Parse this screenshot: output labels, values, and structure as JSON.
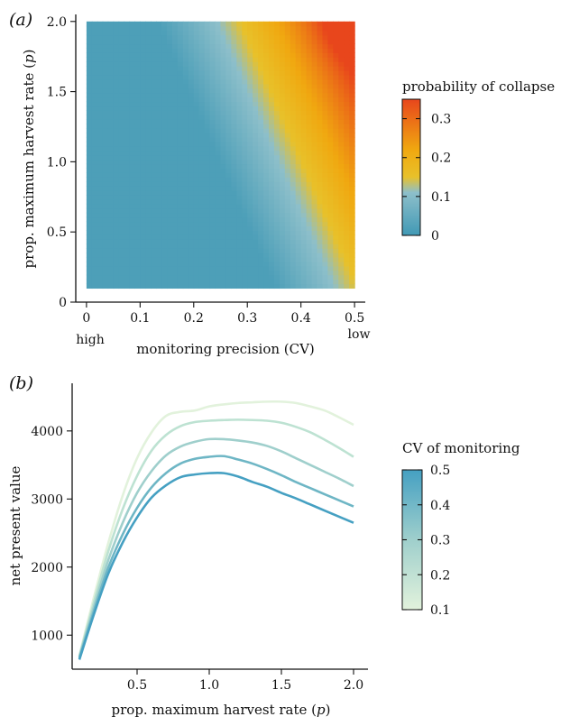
{
  "chart_data": [
    {
      "type": "heatmap",
      "panel_label": "(a)",
      "xlabel": "monitoring precision (CV)",
      "ylabel": "prop. maximum harvest rate (p)",
      "xlim": [
        -0.02,
        0.52
      ],
      "ylim": [
        0,
        2.05
      ],
      "x_range": [
        0,
        0.5
      ],
      "y_range": [
        0.1,
        2.0
      ],
      "x_ticks": [
        "0",
        "0.1",
        "0.2",
        "0.3",
        "0.4",
        "0.5"
      ],
      "y_ticks": [
        "0",
        "0.5",
        "1.0",
        "1.5",
        "2.0"
      ],
      "x_end_labels": {
        "low_precision": "low",
        "high_precision": "high"
      },
      "legend": {
        "title": "probability of collapse",
        "range": [
          0,
          0.35
        ],
        "ticks": [
          "0",
          "0.1",
          "0.2",
          "0.3"
        ],
        "colors": [
          "#4199b5",
          "#8dbfca",
          "#e8c12a",
          "#f0a810",
          "#e8461c"
        ],
        "color_stops": [
          0,
          0.11,
          0.15,
          0.22,
          0.35
        ]
      },
      "description_of_surface": "probability near 0 for most of the grid; rises in the upper-right corner (high CV, high p) to about 0.35 at CV=0.5, p=2.0"
    },
    {
      "type": "line",
      "panel_label": "(b)",
      "xlabel": "prop. maximum harvest rate (p)",
      "ylabel": "net present value",
      "xlim": [
        0.05,
        2.1
      ],
      "ylim": [
        500,
        4700
      ],
      "x_ticks": [
        "0.5",
        "1.0",
        "1.5",
        "2.0"
      ],
      "y_ticks": [
        "1000",
        "2000",
        "3000",
        "4000"
      ],
      "legend": {
        "title": "CV of monitoring",
        "ticks": [
          "0.1",
          "0.2",
          "0.3",
          "0.4",
          "0.5"
        ],
        "range": [
          0.1,
          0.5
        ],
        "colors": [
          "#e2f2dc",
          "#9fcfcc",
          "#45a0c2"
        ]
      },
      "x": [
        0.1,
        0.2,
        0.3,
        0.4,
        0.5,
        0.6,
        0.7,
        0.8,
        0.9,
        1.0,
        1.1,
        1.2,
        1.3,
        1.4,
        1.5,
        1.6,
        1.7,
        1.8,
        1.9,
        2.0
      ],
      "series": [
        {
          "cv": 0.1,
          "color": "#e2f2dc",
          "values": [
            700,
            1550,
            2350,
            3050,
            3600,
            3980,
            4220,
            4280,
            4300,
            4360,
            4390,
            4410,
            4420,
            4430,
            4430,
            4410,
            4360,
            4300,
            4200,
            4090
          ]
        },
        {
          "cv": 0.2,
          "color": "#bde2d2",
          "values": [
            690,
            1480,
            2230,
            2850,
            3340,
            3710,
            3940,
            4070,
            4130,
            4150,
            4160,
            4165,
            4160,
            4150,
            4120,
            4060,
            3980,
            3870,
            3750,
            3620
          ]
        },
        {
          "cv": 0.3,
          "color": "#9fcfcc",
          "values": [
            680,
            1410,
            2100,
            2650,
            3090,
            3410,
            3640,
            3770,
            3840,
            3880,
            3880,
            3860,
            3830,
            3780,
            3700,
            3600,
            3500,
            3400,
            3300,
            3190
          ]
        },
        {
          "cv": 0.4,
          "color": "#6eb6c5",
          "values": [
            660,
            1350,
            1990,
            2480,
            2870,
            3170,
            3380,
            3520,
            3590,
            3620,
            3630,
            3580,
            3520,
            3440,
            3350,
            3250,
            3160,
            3070,
            2980,
            2890
          ]
        },
        {
          "cv": 0.5,
          "color": "#45a0c2",
          "values": [
            640,
            1300,
            1900,
            2360,
            2730,
            3020,
            3200,
            3320,
            3360,
            3380,
            3380,
            3330,
            3250,
            3180,
            3090,
            3010,
            2920,
            2830,
            2740,
            2650
          ]
        }
      ]
    }
  ]
}
